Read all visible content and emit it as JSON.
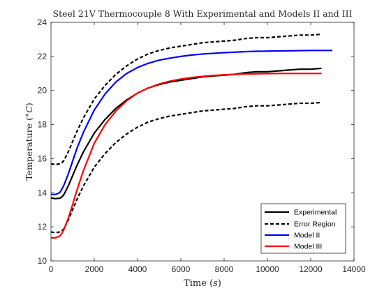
{
  "chart_data": {
    "type": "line",
    "title": "Steel 21V Thermocouple 8 With Experimental and Models II and III",
    "xlabel": "Time (s)",
    "xlabel_parts": {
      "text": "Time (",
      "var": "s",
      "close": ")"
    },
    "ylabel": "Temperature (°C)",
    "ylabel_parts": {
      "text": "Temperature (",
      "var": "°C",
      "close": ")"
    },
    "xlim": [
      0,
      14000
    ],
    "ylim": [
      10,
      24
    ],
    "xticks": [
      0,
      2000,
      4000,
      6000,
      8000,
      10000,
      12000,
      14000
    ],
    "yticks": [
      10,
      12,
      14,
      16,
      18,
      20,
      22,
      24
    ],
    "grid": false,
    "legend_position": "bottom-right",
    "series": [
      {
        "name": "Experimental",
        "color": "#000000",
        "style": "solid",
        "x": [
          0,
          200,
          400,
          500,
          600,
          800,
          1000,
          1200,
          1500,
          2000,
          2500,
          3000,
          3500,
          4000,
          4500,
          5000,
          5500,
          6000,
          6500,
          7000,
          7500,
          8000,
          8500,
          9000,
          9500,
          10000,
          10500,
          11000,
          11500,
          12000,
          12500
        ],
        "y": [
          13.7,
          13.65,
          13.68,
          13.75,
          13.9,
          14.4,
          15.0,
          15.6,
          16.4,
          17.5,
          18.3,
          18.95,
          19.45,
          19.85,
          20.15,
          20.35,
          20.5,
          20.6,
          20.7,
          20.8,
          20.85,
          20.9,
          20.95,
          21.05,
          21.1,
          21.1,
          21.15,
          21.2,
          21.25,
          21.25,
          21.3
        ]
      },
      {
        "name": "Error Region",
        "color": "#000000",
        "style": "dashed",
        "x": [
          0,
          200,
          400,
          500,
          600,
          800,
          1000,
          1200,
          1500,
          2000,
          2500,
          3000,
          3500,
          4000,
          4500,
          5000,
          5500,
          6000,
          6500,
          7000,
          7500,
          8000,
          8500,
          9000,
          9500,
          10000,
          10500,
          11000,
          11500,
          12000,
          12500
        ],
        "y": [
          15.7,
          15.65,
          15.7,
          15.75,
          15.9,
          16.4,
          17.0,
          17.6,
          18.4,
          19.5,
          20.3,
          20.95,
          21.45,
          21.85,
          22.15,
          22.35,
          22.5,
          22.6,
          22.7,
          22.8,
          22.85,
          22.9,
          22.95,
          23.05,
          23.1,
          23.1,
          23.15,
          23.2,
          23.25,
          23.25,
          23.3
        ]
      },
      {
        "name": "",
        "color": "#000000",
        "style": "dashed",
        "x": [
          0,
          200,
          400,
          500,
          600,
          800,
          1000,
          1200,
          1500,
          2000,
          2500,
          3000,
          3500,
          4000,
          4500,
          5000,
          5500,
          6000,
          6500,
          7000,
          7500,
          8000,
          8500,
          9000,
          9500,
          10000,
          10500,
          11000,
          11500,
          12000,
          12500
        ],
        "y": [
          11.7,
          11.65,
          11.7,
          11.75,
          11.9,
          12.4,
          13.0,
          13.6,
          14.4,
          15.5,
          16.3,
          16.95,
          17.45,
          17.85,
          18.15,
          18.35,
          18.5,
          18.6,
          18.7,
          18.8,
          18.85,
          18.9,
          18.95,
          19.05,
          19.1,
          19.1,
          19.15,
          19.2,
          19.25,
          19.25,
          19.3
        ]
      },
      {
        "name": "Model II",
        "color": "#0000ff",
        "style": "solid",
        "x": [
          0,
          200,
          400,
          500,
          600,
          800,
          1000,
          1200,
          1500,
          2000,
          2500,
          3000,
          3500,
          4000,
          4500,
          5000,
          5500,
          6000,
          6500,
          7000,
          7500,
          8000,
          8500,
          9000,
          9500,
          10000,
          10500,
          11000,
          11500,
          12000,
          12500,
          13000
        ],
        "y": [
          13.9,
          13.9,
          14.0,
          14.2,
          14.45,
          15.1,
          15.85,
          16.6,
          17.55,
          18.85,
          19.8,
          20.5,
          21.0,
          21.35,
          21.6,
          21.78,
          21.9,
          22.0,
          22.08,
          22.14,
          22.18,
          22.22,
          22.25,
          22.28,
          22.3,
          22.31,
          22.32,
          22.33,
          22.34,
          22.35,
          22.35,
          22.35
        ]
      },
      {
        "name": "Model III",
        "color": "#ff0000",
        "style": "solid",
        "x": [
          0,
          200,
          400,
          500,
          600,
          800,
          1000,
          1200,
          1500,
          2000,
          2500,
          3000,
          3500,
          4000,
          4500,
          5000,
          5500,
          6000,
          6500,
          7000,
          7500,
          8000,
          8500,
          9000,
          9500,
          10000,
          10500,
          11000,
          11500,
          12000,
          12500
        ],
        "y": [
          11.35,
          11.35,
          11.45,
          11.6,
          11.85,
          12.5,
          13.3,
          14.15,
          15.3,
          16.9,
          18.0,
          18.8,
          19.4,
          19.85,
          20.15,
          20.38,
          20.55,
          20.67,
          20.76,
          20.83,
          20.88,
          20.92,
          20.95,
          20.97,
          20.98,
          20.99,
          21.0,
          21.0,
          21.0,
          21.0,
          21.0
        ]
      }
    ]
  }
}
